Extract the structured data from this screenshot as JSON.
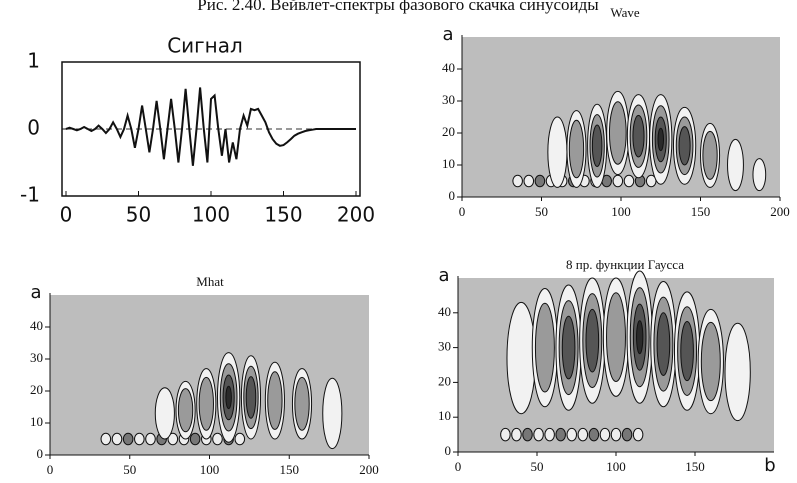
{
  "caption": "Рис. 2.40. Вейвлет-спектры фазового скачка синусоиды",
  "chart_data": [
    {
      "type": "line",
      "title": "Сигнал",
      "x": [
        0,
        2.5,
        5,
        7.5,
        10,
        12.5,
        15,
        17.5,
        20,
        22.5,
        25,
        27.5,
        30,
        32.5,
        35,
        37.5,
        40,
        42.5,
        45,
        47.5,
        50,
        52.5,
        55,
        57.5,
        60,
        62.5,
        65,
        67.5,
        70,
        72.5,
        75,
        77.5,
        80,
        82.5,
        85,
        87.5,
        90,
        92.5,
        95,
        97.5,
        100,
        102.5,
        105,
        107.5,
        110,
        112.5,
        115,
        117.5,
        120,
        122.5,
        125,
        127.5,
        130,
        132.5,
        135,
        137.5,
        140,
        142.5,
        145,
        147.5,
        150,
        152.5,
        155,
        157.5,
        160,
        162.5,
        165,
        167.5,
        170,
        172.5,
        175,
        177.5,
        180,
        182.5,
        185,
        187.5,
        190,
        192.5,
        195,
        197.5,
        200
      ],
      "values": [
        0,
        0.02,
        0,
        -0.02,
        0,
        0.03,
        0,
        -0.03,
        0,
        0.05,
        0,
        -0.06,
        0,
        0.1,
        0,
        -0.12,
        0,
        0.2,
        0,
        -0.28,
        0,
        0.35,
        0,
        -0.35,
        0,
        0.42,
        0,
        -0.45,
        0,
        0.45,
        0,
        -0.5,
        0,
        0.6,
        0,
        -0.55,
        0,
        0.62,
        0,
        -0.5,
        0.45,
        0.5,
        0,
        -0.4,
        0,
        -0.5,
        -0.2,
        -0.45,
        0,
        0.2,
        0.05,
        0.3,
        0.28,
        0.3,
        0.2,
        0.1,
        -0.05,
        -0.15,
        -0.22,
        -0.25,
        -0.24,
        -0.2,
        -0.15,
        -0.1,
        -0.07,
        -0.05,
        -0.03,
        -0.02,
        -0.01,
        0,
        0,
        0,
        0,
        0,
        0,
        0,
        0,
        0,
        0,
        0,
        0
      ],
      "color": "#111111",
      "xlim": [
        0,
        200
      ],
      "xticks": [
        0,
        50,
        100,
        150,
        200
      ],
      "ylim": [
        -1,
        1
      ],
      "yticks": [
        -1,
        0,
        1
      ]
    },
    {
      "type": "contour",
      "title": "Wave",
      "y_label": "a",
      "xlim": [
        0,
        200
      ],
      "xticks": [
        0,
        50,
        100,
        150,
        200
      ],
      "ylim": [
        0,
        50
      ],
      "yticks": [
        0,
        10,
        20,
        30,
        40
      ]
    },
    {
      "type": "contour",
      "title": "Mhat",
      "y_label": "a",
      "xlim": [
        0,
        200
      ],
      "xticks": [
        0,
        50,
        100,
        150,
        200
      ],
      "ylim": [
        0,
        50
      ],
      "yticks": [
        0,
        10,
        20,
        30,
        40
      ]
    },
    {
      "type": "contour",
      "title": "8 пр. функции Гаусса",
      "y_label": "a",
      "x_label": "b",
      "xlim": [
        0,
        200
      ],
      "xticks": [
        0,
        50,
        100,
        150
      ],
      "ylim": [
        0,
        50
      ],
      "yticks": [
        0,
        10,
        20,
        30,
        40
      ]
    }
  ]
}
